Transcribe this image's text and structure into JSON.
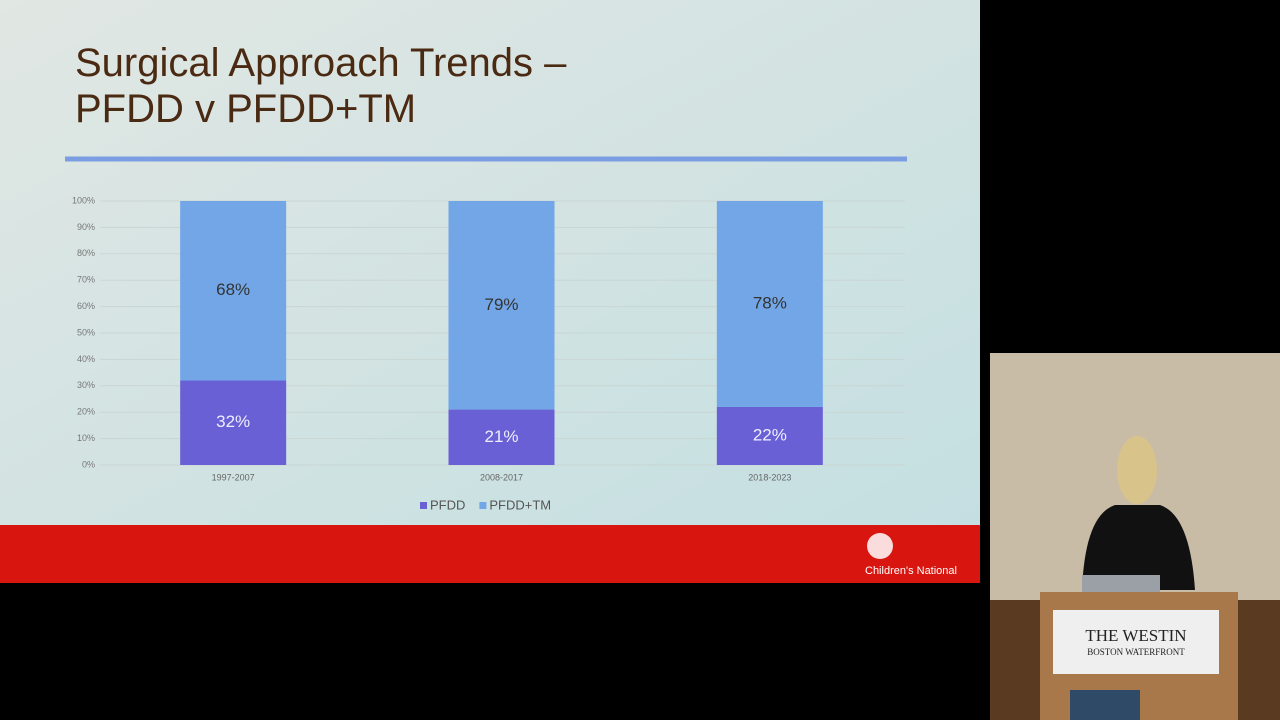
{
  "chart_data": {
    "type": "stacked-bar",
    "title": "Surgical Approach Trends – PFDD v PFDD+TM",
    "categories": [
      "1997-2007",
      "2008-2017",
      "2018-2023"
    ],
    "series": [
      {
        "name": "PFDD",
        "color": "#6a60d6",
        "values": [
          32,
          21,
          22
        ],
        "value_labels": [
          "32%",
          "21%",
          "22%"
        ]
      },
      {
        "name": "PFDD+TM",
        "color": "#72a6e6",
        "values": [
          68,
          79,
          78
        ],
        "value_labels": [
          "68%",
          "79%",
          "78%"
        ]
      }
    ],
    "ylim": [
      0,
      100
    ],
    "yticks": [
      {
        "value": 0,
        "label": "0%"
      },
      {
        "value": 10,
        "label": "10%"
      },
      {
        "value": 20,
        "label": "20%"
      },
      {
        "value": 30,
        "label": "30%"
      },
      {
        "value": 40,
        "label": "40%"
      },
      {
        "value": 50,
        "label": "50%"
      },
      {
        "value": 60,
        "label": "60%"
      },
      {
        "value": 70,
        "label": "70%"
      },
      {
        "value": 80,
        "label": "80%"
      },
      {
        "value": 90,
        "label": "90%"
      },
      {
        "value": 100,
        "label": "100%"
      }
    ],
    "grid": true,
    "legend": "bottom"
  },
  "logo": "Children's National",
  "podium": {
    "line1": "THE WESTIN",
    "line2": "BOSTON WATERFRONT"
  }
}
